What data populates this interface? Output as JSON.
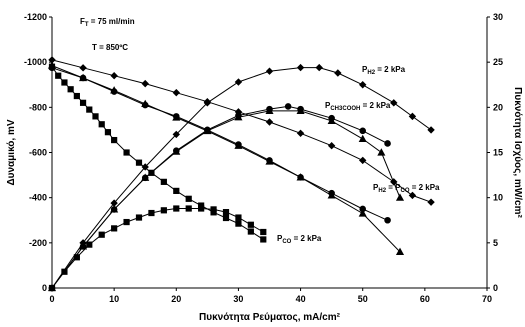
{
  "chart_data": {
    "type": "line",
    "xlabel": "Πυκνότητα Ρεύματος, mA/cm²",
    "ylabel_left": "Δυναμικό, mV",
    "ylabel_right": "Πυκνότητα Ισχύος, mW/cm²",
    "xlim": [
      0,
      70
    ],
    "ylim_left": [
      0,
      -1200
    ],
    "ylim_right": [
      0,
      30
    ],
    "x_ticks": [
      "0",
      "10",
      "20",
      "30",
      "40",
      "50",
      "60",
      "70"
    ],
    "y_left_ticks": [
      "0",
      "-200",
      "-400",
      "-600",
      "-800",
      "-1000",
      "-1200"
    ],
    "y_right_ticks": [
      "0",
      "5",
      "10",
      "15",
      "20",
      "25",
      "30"
    ],
    "grid": false,
    "text_annotations": {
      "flow_main": "F",
      "flow_sub": "T",
      "flow_value": " = 75 ml/min",
      "temperature": "T = 850ºC"
    },
    "series": [
      {
        "key": "h2",
        "marker": "diamond",
        "label": {
          "pre": "P",
          "sub": "H",
          "sub2": "2",
          "post": " = 2 kPa"
        },
        "voltage": [
          [
            0,
            -1010
          ],
          [
            5,
            -975
          ],
          [
            10,
            -940
          ],
          [
            15,
            -905
          ],
          [
            20,
            -865
          ],
          [
            25,
            -825
          ],
          [
            30,
            -780
          ],
          [
            35,
            -735
          ],
          [
            40,
            -685
          ],
          [
            45,
            -630
          ],
          [
            50,
            -565
          ],
          [
            55,
            -470
          ],
          [
            58,
            -410
          ],
          [
            61,
            -380
          ]
        ],
        "power": [
          [
            0,
            0
          ],
          [
            5,
            5
          ],
          [
            10,
            9.4
          ],
          [
            15,
            13.4
          ],
          [
            20,
            17
          ],
          [
            25,
            20.5
          ],
          [
            30,
            22.8
          ],
          [
            35,
            24
          ],
          [
            40,
            24.4
          ],
          [
            43,
            24.4
          ],
          [
            46,
            23.8
          ],
          [
            50,
            22.5
          ],
          [
            55,
            20.5
          ],
          [
            58,
            19
          ],
          [
            61,
            17.5
          ]
        ]
      },
      {
        "key": "ch3cooh",
        "marker": "circle",
        "label": {
          "pre": "P",
          "sub": "CH",
          "sub2": "3",
          "sub3": "COOH",
          "post": " = 2 kPa"
        },
        "voltage": [
          [
            0,
            -975
          ],
          [
            5,
            -930
          ],
          [
            10,
            -870
          ],
          [
            15,
            -810
          ],
          [
            20,
            -760
          ],
          [
            25,
            -700
          ],
          [
            30,
            -635
          ],
          [
            35,
            -565
          ],
          [
            40,
            -490
          ],
          [
            45,
            -420
          ],
          [
            50,
            -350
          ],
          [
            54,
            -300
          ]
        ],
        "power": [
          [
            0,
            0
          ],
          [
            5,
            4.6
          ],
          [
            10,
            8.7
          ],
          [
            15,
            12.2
          ],
          [
            20,
            15.2
          ],
          [
            25,
            17.5
          ],
          [
            30,
            19.1
          ],
          [
            35,
            19.8
          ],
          [
            38,
            20.1
          ],
          [
            40,
            19.8
          ],
          [
            45,
            18.8
          ],
          [
            50,
            17.4
          ],
          [
            54,
            16
          ]
        ]
      },
      {
        "key": "h2co",
        "marker": "triangle",
        "label": {
          "pre": "P",
          "sub": "H",
          "sub2": "2",
          "mid": " = P",
          "sub4": "CO",
          "post": " = 2 kPa"
        },
        "voltage": [
          [
            0,
            -985
          ],
          [
            5,
            -930
          ],
          [
            10,
            -875
          ],
          [
            15,
            -815
          ],
          [
            20,
            -755
          ],
          [
            25,
            -695
          ],
          [
            30,
            -630
          ],
          [
            35,
            -560
          ],
          [
            40,
            -490
          ],
          [
            45,
            -410
          ],
          [
            50,
            -330
          ],
          [
            56,
            -160
          ]
        ],
        "power": [
          [
            0,
            0
          ],
          [
            5,
            4.6
          ],
          [
            10,
            8.7
          ],
          [
            15,
            12.2
          ],
          [
            20,
            15.1
          ],
          [
            25,
            17.4
          ],
          [
            30,
            18.9
          ],
          [
            35,
            19.6
          ],
          [
            40,
            19.6
          ],
          [
            45,
            18.5
          ],
          [
            50,
            16.5
          ],
          [
            53,
            15
          ],
          [
            56,
            10
          ]
        ]
      },
      {
        "key": "co",
        "marker": "square",
        "label": {
          "pre": "P",
          "sub4": "CO",
          "post": " = 2 kPa"
        },
        "voltage": [
          [
            0,
            -980
          ],
          [
            1,
            -940
          ],
          [
            2,
            -910
          ],
          [
            3,
            -880
          ],
          [
            4,
            -850
          ],
          [
            5,
            -820
          ],
          [
            6,
            -790
          ],
          [
            7,
            -760
          ],
          [
            8,
            -725
          ],
          [
            9,
            -690
          ],
          [
            10,
            -655
          ],
          [
            12,
            -600
          ],
          [
            14,
            -555
          ],
          [
            16,
            -510
          ],
          [
            18,
            -470
          ],
          [
            20,
            -430
          ],
          [
            22,
            -395
          ],
          [
            24,
            -365
          ],
          [
            26,
            -335
          ],
          [
            28,
            -310
          ],
          [
            30,
            -285
          ],
          [
            32,
            -250
          ],
          [
            34,
            -215
          ]
        ],
        "power": [
          [
            0,
            0
          ],
          [
            2,
            1.8
          ],
          [
            4,
            3.4
          ],
          [
            6,
            4.8
          ],
          [
            8,
            5.9
          ],
          [
            10,
            6.6
          ],
          [
            12,
            7.3
          ],
          [
            14,
            7.8
          ],
          [
            16,
            8.3
          ],
          [
            18,
            8.6
          ],
          [
            20,
            8.8
          ],
          [
            22,
            8.8
          ],
          [
            24,
            8.8
          ],
          [
            26,
            8.7
          ],
          [
            28,
            8.4
          ],
          [
            30,
            7.8
          ],
          [
            32,
            7
          ],
          [
            34,
            6.2
          ]
        ]
      }
    ]
  }
}
